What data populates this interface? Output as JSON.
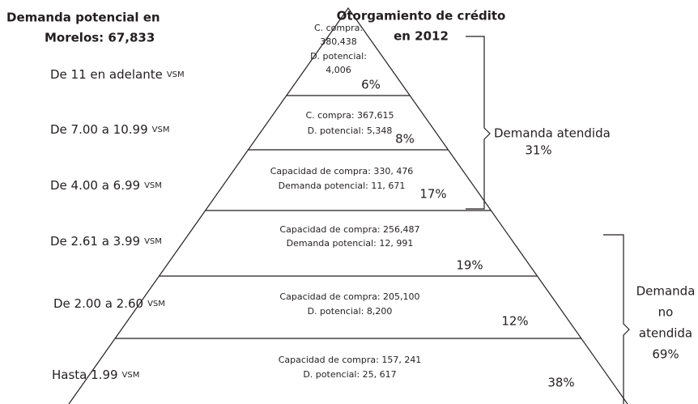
{
  "title": {
    "lines": [
      "Demanda potencial en",
      "Morelos: 67,833"
    ]
  },
  "subtitle": {
    "lines": [
      "Otorgamiento de crédito",
      "en 2012"
    ]
  },
  "levels": [
    {
      "range": "De 11 en adelante",
      "unit": "VSM",
      "lines": [
        "C. compra:",
        "380,438",
        "D. potencial:",
        "4,006"
      ],
      "percent": "6%"
    },
    {
      "range": "De 7.00 a 10.99",
      "unit": "VSM",
      "lines": [
        "C. compra: 367,615",
        "D. potencial: 5,348"
      ],
      "percent": "8%"
    },
    {
      "range": "De 4.00 a 6.99",
      "unit": "VSM",
      "lines": [
        "Capacidad de compra: 330, 476",
        "Demanda potencial: 11, 671"
      ],
      "percent": "17%"
    },
    {
      "range": "De 2.61 a 3.99",
      "unit": "VSM",
      "lines": [
        "Capacidad de compra: 256,487",
        "Demanda potencial: 12, 991"
      ],
      "percent": "19%"
    },
    {
      "range": "De 2.00 a 2.60",
      "unit": "VSM",
      "lines": [
        "Capacidad de compra: 205,100",
        "D. potencial: 8,200"
      ],
      "percent": "12%"
    },
    {
      "range": "Hasta 1.99",
      "unit": "VSM",
      "lines": [
        "Capacidad de compra: 157, 241",
        "D. potencial: 25, 617"
      ],
      "percent": "38%"
    }
  ],
  "groups": [
    {
      "lines": [
        "Demanda atendida",
        "31%"
      ]
    },
    {
      "lines": [
        "Demanda",
        "no",
        "atendida",
        "69%"
      ]
    }
  ]
}
